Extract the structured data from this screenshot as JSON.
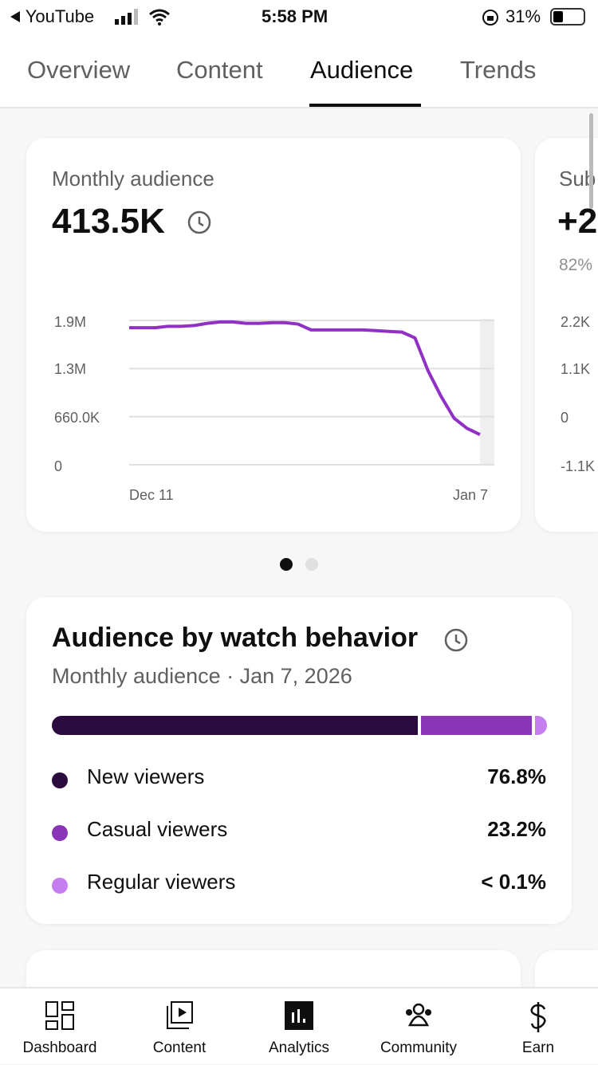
{
  "status_bar": {
    "back_app": "YouTube",
    "time": "5:58 PM",
    "battery": "31%"
  },
  "tabs": [
    {
      "label": "Overview"
    },
    {
      "label": "Content"
    },
    {
      "label": "Audience",
      "active": true
    },
    {
      "label": "Trends"
    }
  ],
  "monthly_card": {
    "title": "Monthly audience",
    "value": "413.5K",
    "info_icon": "clock-icon"
  },
  "chart_data": {
    "type": "line",
    "x_start": "Dec 11",
    "x_end": "Jan 7",
    "x_tick_labels": [
      "Dec 11",
      "Jan 7"
    ],
    "y_tick_labels": [
      "0",
      "660.0K",
      "1.3M",
      "1.9M"
    ],
    "ylim": [
      0,
      1980000
    ],
    "grid": true,
    "color": "#9130c4",
    "values": [
      1880000,
      1880000,
      1880000,
      1900000,
      1900000,
      1910000,
      1940000,
      1960000,
      1960000,
      1940000,
      1940000,
      1950000,
      1950000,
      1930000,
      1850000,
      1850000,
      1850000,
      1850000,
      1850000,
      1840000,
      1830000,
      1820000,
      1740000,
      1290000,
      940000,
      640000,
      500000,
      413500
    ]
  },
  "subscribers_card": {
    "title": "Sub",
    "value": "+2",
    "sub": "82%",
    "y_tick_labels": [
      "2.2K",
      "1.1K",
      "0",
      "-1.1K"
    ]
  },
  "pager": {
    "pages": 2,
    "active": 1
  },
  "behavior_card": {
    "title": "Audience by watch behavior",
    "subtitle": "Monthly audience · Jan 7, 2026",
    "segments": [
      {
        "label": "New viewers",
        "value": "76.8%",
        "share": 76.8,
        "color": "#2b0a3d"
      },
      {
        "label": "Casual viewers",
        "value": "23.2%",
        "share": 23.2,
        "color": "#8a35b8"
      },
      {
        "label": "Regular viewers",
        "value": "< 0.1%",
        "share": 0.1,
        "color": "#c57ef0"
      }
    ]
  },
  "bottom_nav": [
    {
      "label": "Dashboard",
      "icon": "dashboard-icon"
    },
    {
      "label": "Content",
      "icon": "content-icon"
    },
    {
      "label": "Analytics",
      "icon": "analytics-icon",
      "active": true
    },
    {
      "label": "Community",
      "icon": "community-icon"
    },
    {
      "label": "Earn",
      "icon": "dollar-icon"
    }
  ]
}
